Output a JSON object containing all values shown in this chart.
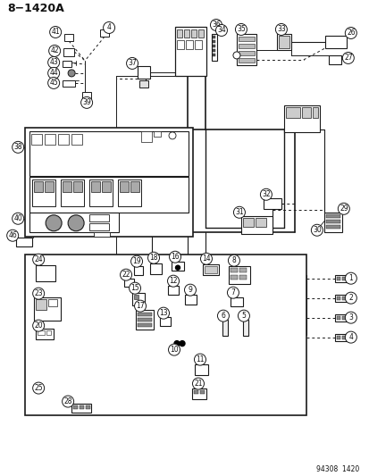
{
  "title": "8−1420A",
  "footer": "94308  1420",
  "bg_color": "#ffffff",
  "line_color": "#1a1a1a",
  "text_color": "#111111",
  "fig_width": 4.14,
  "fig_height": 5.33,
  "dpi": 100
}
